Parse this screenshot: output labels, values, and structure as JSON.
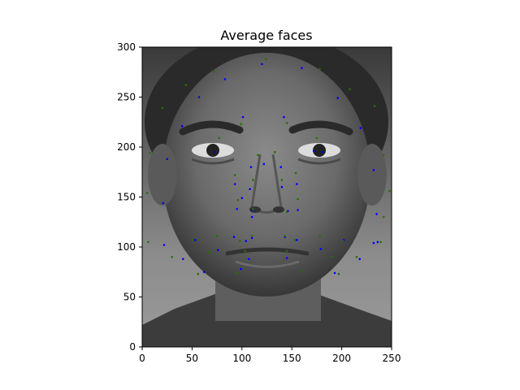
{
  "chart_data": {
    "type": "scatter",
    "title": "Average faces",
    "xlabel": "",
    "ylabel": "",
    "xlim": [
      0,
      250
    ],
    "ylim": [
      0,
      300
    ],
    "x_ticks": [
      0,
      50,
      100,
      150,
      200,
      250
    ],
    "y_ticks": [
      0,
      50,
      100,
      150,
      200,
      250,
      300
    ],
    "grid": false,
    "background_image": "grayscale-average-face",
    "series": [
      {
        "color": "#0000ff",
        "points": [
          [
            120,
            283
          ],
          [
            160,
            279
          ],
          [
            83,
            268
          ],
          [
            57,
            250
          ],
          [
            196,
            249
          ],
          [
            40,
            221
          ],
          [
            101,
            230
          ],
          [
            142,
            230
          ],
          [
            219,
            219
          ],
          [
            73,
            195
          ],
          [
            180,
            195
          ],
          [
            25,
            188
          ],
          [
            122,
            183
          ],
          [
            109,
            180
          ],
          [
            139,
            180
          ],
          [
            232,
            177
          ],
          [
            93,
            163
          ],
          [
            140,
            160
          ],
          [
            108,
            158
          ],
          [
            155,
            163
          ],
          [
            100,
            149
          ],
          [
            21,
            144
          ],
          [
            95,
            138
          ],
          [
            156,
            137
          ],
          [
            110,
            137
          ],
          [
            146,
            136
          ],
          [
            110,
            130
          ],
          [
            235,
            133
          ],
          [
            53,
            107
          ],
          [
            104,
            106
          ],
          [
            110,
            109
          ],
          [
            143,
            110
          ],
          [
            155,
            107
          ],
          [
            202,
            107
          ],
          [
            22,
            102
          ],
          [
            232,
            104
          ],
          [
            76,
            97
          ],
          [
            179,
            98
          ],
          [
            41,
            88
          ],
          [
            107,
            88
          ],
          [
            145,
            89
          ],
          [
            218,
            88
          ],
          [
            99,
            78
          ],
          [
            62,
            75
          ],
          [
            193,
            74
          ],
          [
            236,
            105
          ],
          [
            172,
            196
          ],
          [
            92,
            110
          ]
        ]
      },
      {
        "color": "#2a6e00",
        "points": [
          [
            124,
            288
          ],
          [
            72,
            276
          ],
          [
            178,
            278
          ],
          [
            44,
            262
          ],
          [
            208,
            258
          ],
          [
            20,
            239
          ],
          [
            233,
            241
          ],
          [
            99,
            223
          ],
          [
            145,
            224
          ],
          [
            77,
            209
          ],
          [
            175,
            209
          ],
          [
            8,
            194
          ],
          [
            116,
            192
          ],
          [
            133,
            195
          ],
          [
            242,
            192
          ],
          [
            93,
            172
          ],
          [
            154,
            174
          ],
          [
            111,
            167
          ],
          [
            140,
            167
          ],
          [
            5,
            154
          ],
          [
            96,
            147
          ],
          [
            156,
            148
          ],
          [
            248,
            156
          ],
          [
            111,
            138
          ],
          [
            145,
            135
          ],
          [
            6,
            105
          ],
          [
            239,
            105
          ],
          [
            75,
            111
          ],
          [
            110,
            111
          ],
          [
            143,
            111
          ],
          [
            178,
            111
          ],
          [
            50,
            107
          ],
          [
            98,
            106
          ],
          [
            153,
            107
          ],
          [
            201,
            106
          ],
          [
            95,
            74
          ],
          [
            160,
            76
          ],
          [
            30,
            90
          ],
          [
            215,
            90
          ],
          [
            56,
            73
          ],
          [
            197,
            73
          ],
          [
            103,
            96
          ],
          [
            145,
            96
          ],
          [
            190,
            90
          ],
          [
            67,
            95
          ],
          [
            242,
            130
          ]
        ]
      }
    ]
  }
}
